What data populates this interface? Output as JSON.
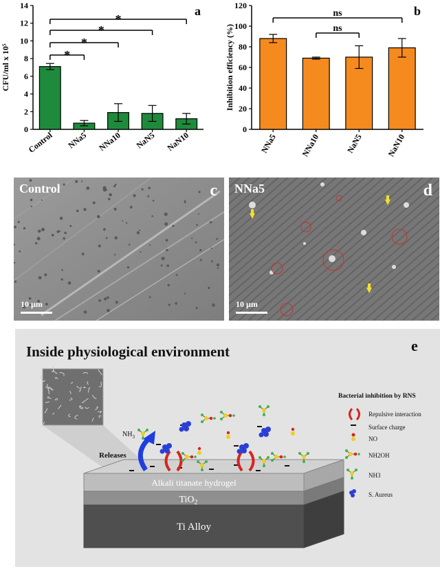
{
  "chart_data": [
    {
      "type": "bar",
      "panel_letter": "a",
      "categories": [
        "Control",
        "NNa5",
        "NNa10",
        "NaN5",
        "NaN10"
      ],
      "values": [
        7.1,
        0.7,
        1.9,
        1.8,
        1.2
      ],
      "errors": [
        0.35,
        0.3,
        1.0,
        0.9,
        0.6
      ],
      "ylabel": "CFU/ml  x 10⁵",
      "ylim": [
        0,
        14
      ],
      "yticks": [
        0,
        2,
        4,
        6,
        8,
        10,
        12,
        14
      ],
      "bar_color": "#1f8a3c",
      "significance": [
        {
          "from": 0,
          "to": 1,
          "label": "*"
        },
        {
          "from": 0,
          "to": 2,
          "label": "*"
        },
        {
          "from": 0,
          "to": 3,
          "label": "*"
        },
        {
          "from": 0,
          "to": 4,
          "label": "*"
        }
      ]
    },
    {
      "type": "bar",
      "panel_letter": "b",
      "categories": [
        "NNa5",
        "NNa10",
        "NaN5",
        "NaN10"
      ],
      "values": [
        88,
        69,
        70,
        79
      ],
      "errors": [
        4,
        1,
        11,
        9
      ],
      "ylabel": "Inhibition efficiency (%)",
      "ylim": [
        0,
        120
      ],
      "yticks": [
        0,
        20,
        40,
        60,
        80,
        100,
        120
      ],
      "bar_color": "#f58a1f",
      "significance": [
        {
          "from": 0,
          "to": 3,
          "label": "ns"
        },
        {
          "from": 1,
          "to": 2,
          "label": "ns"
        }
      ]
    }
  ],
  "micrographs": {
    "c": {
      "label": "Control",
      "letter": "c",
      "scale": "10 µm"
    },
    "d": {
      "label": "NNa5",
      "letter": "d",
      "scale": "10 µm"
    }
  },
  "schematic": {
    "letter": "e",
    "title": "Inside physiological environment",
    "layers": {
      "top": "Alkali titanate hydrogel",
      "middle": "TiO",
      "middle_sub": "2",
      "bottom": "Ti Alloy"
    },
    "nh3_label": "NH",
    "nh3_sub": "3",
    "releases_label": "Releases",
    "legend": {
      "title": "Bacterial inhibition by RNS",
      "items": [
        "Repulsive interaction",
        "Surface charge",
        "NO",
        "NH2OH",
        "NH3",
        "S. Aureus"
      ]
    },
    "colors": {
      "repulsive": "#d8241f",
      "bacteria": "#2a3fd6",
      "nitrogen": "#e8d21c",
      "hydrogen": "#3ab54a",
      "oxygen": "#d8241f",
      "arrow": "#1e3ee0"
    }
  }
}
